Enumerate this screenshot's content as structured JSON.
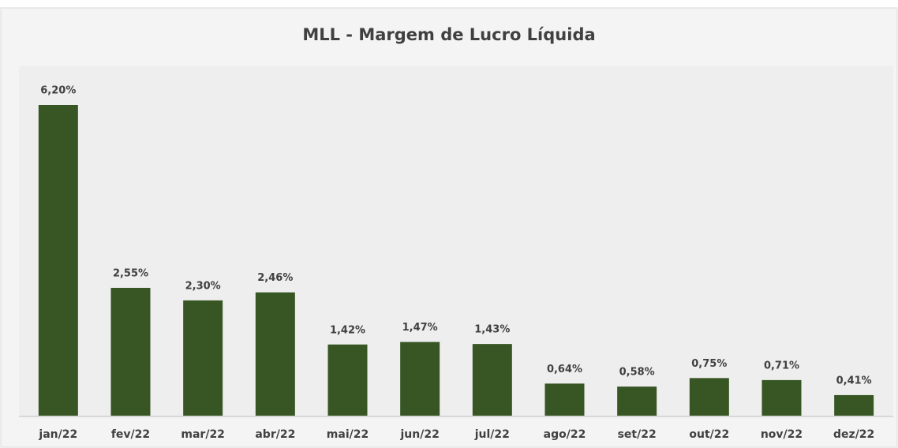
{
  "chart_data": {
    "type": "bar",
    "title": "MLL - Margem de Lucro Líquida",
    "categories": [
      "jan/22",
      "fev/22",
      "mar/22",
      "abr/22",
      "mai/22",
      "jun/22",
      "jul/22",
      "ago/22",
      "set/22",
      "out/22",
      "nov/22",
      "dez/22"
    ],
    "values": [
      6.2,
      2.55,
      2.3,
      2.46,
      1.42,
      1.47,
      1.43,
      0.64,
      0.58,
      0.75,
      0.71,
      0.41
    ],
    "value_labels": [
      "6,20%",
      "2,55%",
      "2,30%",
      "2,46%",
      "1,42%",
      "1,47%",
      "1,43%",
      "0,64%",
      "0,58%",
      "0,75%",
      "0,71%",
      "0,41%"
    ],
    "color": "#375623"
  }
}
